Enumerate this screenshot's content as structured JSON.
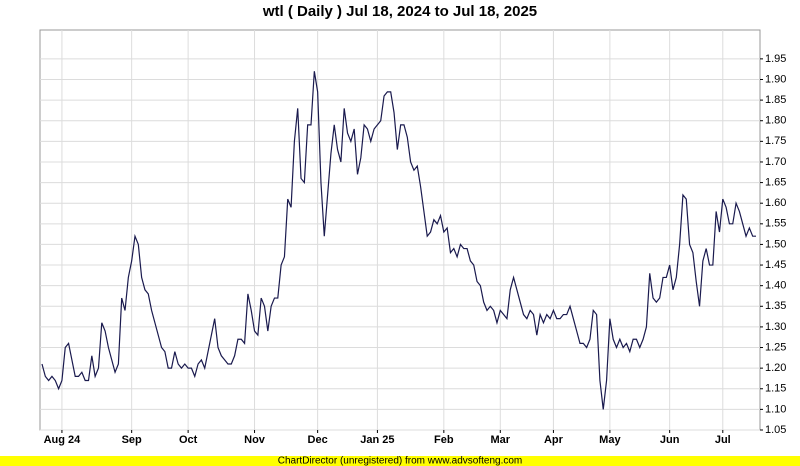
{
  "chart_data": {
    "type": "line",
    "title": "wtl ( Daily ) Jul 18, 2024 to Jul 18, 2025",
    "footer": "ChartDirector (unregistered) from www.advsofteng.com",
    "color": "#1a1a4e",
    "grid": true,
    "ylim": [
      1.05,
      2.02
    ],
    "yticks": [
      1.05,
      {
        "value": 1.1,
        "label": "1.10"
      },
      1.15,
      {
        "value": 1.2,
        "label": "1.20"
      },
      1.25,
      {
        "value": 1.3,
        "label": "1.30"
      },
      1.35,
      {
        "value": 1.4,
        "label": "1.40"
      },
      1.45,
      {
        "value": 1.5,
        "label": "1.50"
      },
      1.55,
      {
        "value": 1.6,
        "label": "1.60"
      },
      1.65,
      {
        "value": 1.7,
        "label": "1.70"
      },
      1.75,
      {
        "value": 1.8,
        "label": "1.80"
      },
      1.85,
      {
        "value": 1.9,
        "label": "1.90"
      },
      1.95
    ],
    "categories": [
      null,
      null,
      null,
      null,
      null,
      null,
      "Aug 24",
      null,
      null,
      null,
      null,
      null,
      null,
      null,
      null,
      null,
      null,
      null,
      null,
      null,
      null,
      null,
      null,
      null,
      null,
      null,
      null,
      "Sep",
      null,
      null,
      null,
      null,
      null,
      null,
      null,
      null,
      null,
      null,
      null,
      null,
      null,
      null,
      null,
      null,
      "Oct",
      null,
      null,
      null,
      null,
      null,
      null,
      null,
      null,
      null,
      null,
      null,
      null,
      null,
      null,
      null,
      null,
      null,
      null,
      null,
      "Nov",
      null,
      null,
      null,
      null,
      null,
      null,
      null,
      null,
      null,
      null,
      null,
      null,
      null,
      null,
      null,
      null,
      null,
      null,
      "Dec",
      null,
      null,
      null,
      null,
      null,
      null,
      null,
      null,
      null,
      null,
      null,
      null,
      null,
      null,
      null,
      null,
      null,
      "Jan 25",
      null,
      null,
      null,
      null,
      null,
      null,
      null,
      null,
      null,
      null,
      null,
      null,
      null,
      null,
      null,
      null,
      null,
      null,
      null,
      "Feb",
      null,
      null,
      null,
      null,
      null,
      null,
      null,
      null,
      null,
      null,
      null,
      null,
      null,
      null,
      null,
      null,
      "Mar",
      null,
      null,
      null,
      null,
      null,
      null,
      null,
      null,
      null,
      null,
      null,
      null,
      null,
      null,
      null,
      "Apr",
      null,
      null,
      null,
      null,
      null,
      null,
      null,
      null,
      null,
      null,
      null,
      null,
      null,
      null,
      null,
      null,
      "May",
      null,
      null,
      null,
      null,
      null,
      null,
      null,
      null,
      null,
      null,
      null,
      null,
      null,
      null,
      null,
      null,
      null,
      "Jun",
      null,
      null,
      null,
      null,
      null,
      null,
      null,
      null,
      null,
      null,
      null,
      null,
      null,
      null,
      null,
      "Jul",
      null,
      null,
      null,
      null,
      null,
      null,
      null,
      null,
      null,
      null
    ],
    "values": [
      1.21,
      1.18,
      1.17,
      1.18,
      1.17,
      1.15,
      1.17,
      1.25,
      1.26,
      1.22,
      1.18,
      1.18,
      1.19,
      1.17,
      1.17,
      1.23,
      1.18,
      1.2,
      1.31,
      1.29,
      1.25,
      1.22,
      1.19,
      1.21,
      1.37,
      1.34,
      1.42,
      1.46,
      1.52,
      1.5,
      1.42,
      1.39,
      1.38,
      1.34,
      1.31,
      1.28,
      1.25,
      1.24,
      1.2,
      1.2,
      1.24,
      1.21,
      1.2,
      1.21,
      1.2,
      1.2,
      1.18,
      1.21,
      1.22,
      1.2,
      1.24,
      1.28,
      1.32,
      1.25,
      1.23,
      1.22,
      1.21,
      1.21,
      1.23,
      1.27,
      1.27,
      1.26,
      1.38,
      1.34,
      1.29,
      1.28,
      1.37,
      1.35,
      1.29,
      1.35,
      1.37,
      1.37,
      1.45,
      1.47,
      1.61,
      1.59,
      1.75,
      1.83,
      1.66,
      1.65,
      1.79,
      1.79,
      1.92,
      1.87,
      1.65,
      1.52,
      1.62,
      1.72,
      1.79,
      1.73,
      1.7,
      1.83,
      1.77,
      1.75,
      1.78,
      1.67,
      1.71,
      1.79,
      1.78,
      1.75,
      1.78,
      1.79,
      1.8,
      1.86,
      1.87,
      1.87,
      1.82,
      1.73,
      1.79,
      1.79,
      1.76,
      1.7,
      1.68,
      1.69,
      1.64,
      1.58,
      1.52,
      1.53,
      1.56,
      1.55,
      1.57,
      1.53,
      1.54,
      1.48,
      1.49,
      1.47,
      1.5,
      1.49,
      1.49,
      1.46,
      1.45,
      1.41,
      1.4,
      1.36,
      1.34,
      1.35,
      1.34,
      1.31,
      1.34,
      1.33,
      1.32,
      1.39,
      1.42,
      1.39,
      1.36,
      1.33,
      1.32,
      1.34,
      1.33,
      1.28,
      1.33,
      1.31,
      1.33,
      1.32,
      1.34,
      1.32,
      1.32,
      1.33,
      1.33,
      1.35,
      1.32,
      1.29,
      1.26,
      1.26,
      1.25,
      1.27,
      1.34,
      1.33,
      1.17,
      1.1,
      1.17,
      1.32,
      1.27,
      1.25,
      1.27,
      1.25,
      1.26,
      1.24,
      1.27,
      1.27,
      1.25,
      1.27,
      1.3,
      1.43,
      1.37,
      1.36,
      1.37,
      1.42,
      1.42,
      1.45,
      1.39,
      1.42,
      1.5,
      1.62,
      1.61,
      1.5,
      1.48,
      1.41,
      1.35,
      1.46,
      1.49,
      1.45,
      1.45,
      1.58,
      1.53,
      1.61,
      1.59,
      1.55,
      1.55,
      1.6,
      1.58,
      1.55,
      1.52,
      1.54,
      1.52,
      1.52
    ]
  }
}
